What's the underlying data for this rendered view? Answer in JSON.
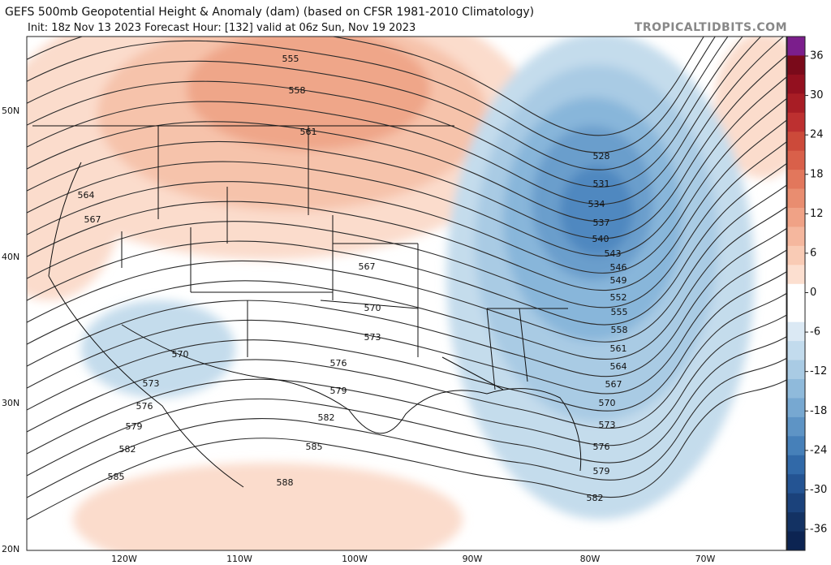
{
  "header": {
    "title": "GEFS 500mb Geopotential Height & Anomaly (dam) (based on CFSR 1981-2010 Climatology)",
    "subtitle": "Init: 18z Nov 13 2023   Forecast Hour: [132]   valid at 06z Sun, Nov 19 2023",
    "source": "TROPICALTIDBITS.COM"
  },
  "map": {
    "lat_labels": [
      "50N",
      "40N",
      "30N",
      "20N"
    ],
    "lon_labels": [
      "120W",
      "110W",
      "100W",
      "90W",
      "80W",
      "70W"
    ],
    "contour_labels": [
      "555",
      "558",
      "561",
      "564",
      "567",
      "567",
      "570",
      "573",
      "576",
      "579",
      "582",
      "585",
      "588",
      "570",
      "573",
      "576",
      "579",
      "582",
      "585",
      "528",
      "531",
      "534",
      "537",
      "540",
      "543",
      "546",
      "549",
      "552",
      "555",
      "558",
      "561",
      "564",
      "567",
      "570",
      "573",
      "576",
      "579",
      "582"
    ]
  },
  "colorbar": {
    "ticks": [
      36,
      30,
      24,
      18,
      12,
      6,
      0,
      -6,
      -12,
      -18,
      -24,
      -30,
      -36
    ]
  }
}
